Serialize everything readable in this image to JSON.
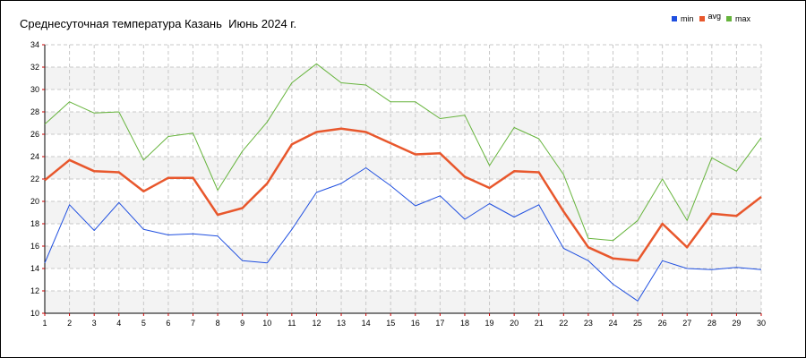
{
  "title": "Среднесуточная температура Казань  Июнь 2024 г.",
  "chart_data": {
    "type": "line",
    "title": "Среднесуточная температура Казань  Июнь 2024 г.",
    "xlabel": "",
    "ylabel": "",
    "x": [
      1,
      2,
      3,
      4,
      5,
      6,
      7,
      8,
      9,
      10,
      11,
      12,
      13,
      14,
      15,
      16,
      17,
      18,
      19,
      20,
      21,
      22,
      23,
      24,
      25,
      26,
      27,
      28,
      29,
      30
    ],
    "xlim": [
      1,
      30
    ],
    "ylim": [
      10,
      34
    ],
    "yticks": [
      10,
      12,
      14,
      16,
      18,
      20,
      22,
      24,
      26,
      28,
      30,
      32,
      34
    ],
    "grid": true,
    "legend_position": "top-right",
    "series": [
      {
        "name": "min",
        "color": "#1f4fe0",
        "values": [
          14.5,
          19.7,
          17.4,
          19.9,
          17.5,
          17.0,
          17.1,
          16.9,
          14.7,
          14.5,
          17.5,
          20.8,
          21.6,
          23.0,
          21.4,
          19.6,
          20.5,
          18.4,
          19.8,
          18.6,
          19.7,
          15.8,
          14.7,
          12.6,
          11.1,
          14.7,
          14.0,
          13.9,
          14.1,
          13.9
        ]
      },
      {
        "name": "avg",
        "color": "#e8572c",
        "values": [
          21.9,
          23.7,
          22.7,
          22.6,
          20.9,
          22.1,
          22.1,
          18.8,
          19.4,
          21.6,
          25.1,
          26.2,
          26.5,
          26.2,
          25.2,
          24.2,
          24.3,
          22.2,
          21.2,
          22.7,
          22.6,
          19.1,
          15.9,
          14.9,
          14.7,
          18.0,
          15.9,
          18.9,
          18.7,
          20.4
        ]
      },
      {
        "name": "max",
        "color": "#66b43c",
        "values": [
          26.9,
          28.9,
          27.9,
          28.0,
          23.7,
          25.8,
          26.1,
          21.0,
          24.5,
          27.1,
          30.6,
          32.3,
          30.6,
          30.4,
          28.9,
          28.9,
          27.4,
          27.7,
          23.2,
          26.6,
          25.6,
          22.4,
          16.7,
          16.5,
          18.3,
          22.0,
          18.3,
          23.9,
          22.7,
          25.7
        ]
      }
    ]
  }
}
